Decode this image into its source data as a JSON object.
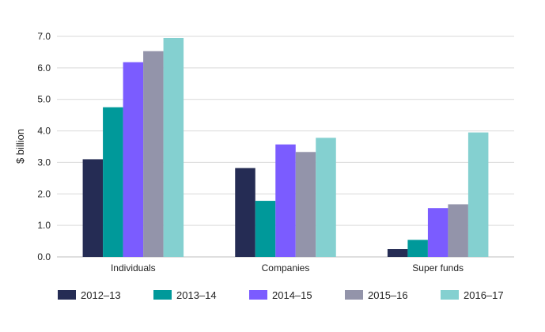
{
  "chart_data": {
    "type": "bar",
    "title": "",
    "xlabel": "",
    "ylabel": "$ billion",
    "ylim": [
      0,
      7
    ],
    "yticks": [
      "0.0",
      "1.0",
      "2.0",
      "3.0",
      "4.0",
      "5.0",
      "6.0",
      "7.0"
    ],
    "grid": true,
    "legend_position": "bottom",
    "categories": [
      "Individuals",
      "Companies",
      "Super funds"
    ],
    "series": [
      {
        "name": "2012–13",
        "color": "#252c54",
        "values": [
          3.1,
          2.82,
          0.25
        ]
      },
      {
        "name": "2013–14",
        "color": "#00999a",
        "values": [
          4.75,
          1.78,
          0.54
        ]
      },
      {
        "name": "2014–15",
        "color": "#7b5cff",
        "values": [
          6.18,
          3.57,
          1.55
        ]
      },
      {
        "name": "2015–16",
        "color": "#9394aa",
        "values": [
          6.53,
          3.33,
          1.67
        ]
      },
      {
        "name": "2016–17",
        "color": "#84d0d0",
        "values": [
          6.95,
          3.78,
          3.95
        ]
      }
    ]
  }
}
